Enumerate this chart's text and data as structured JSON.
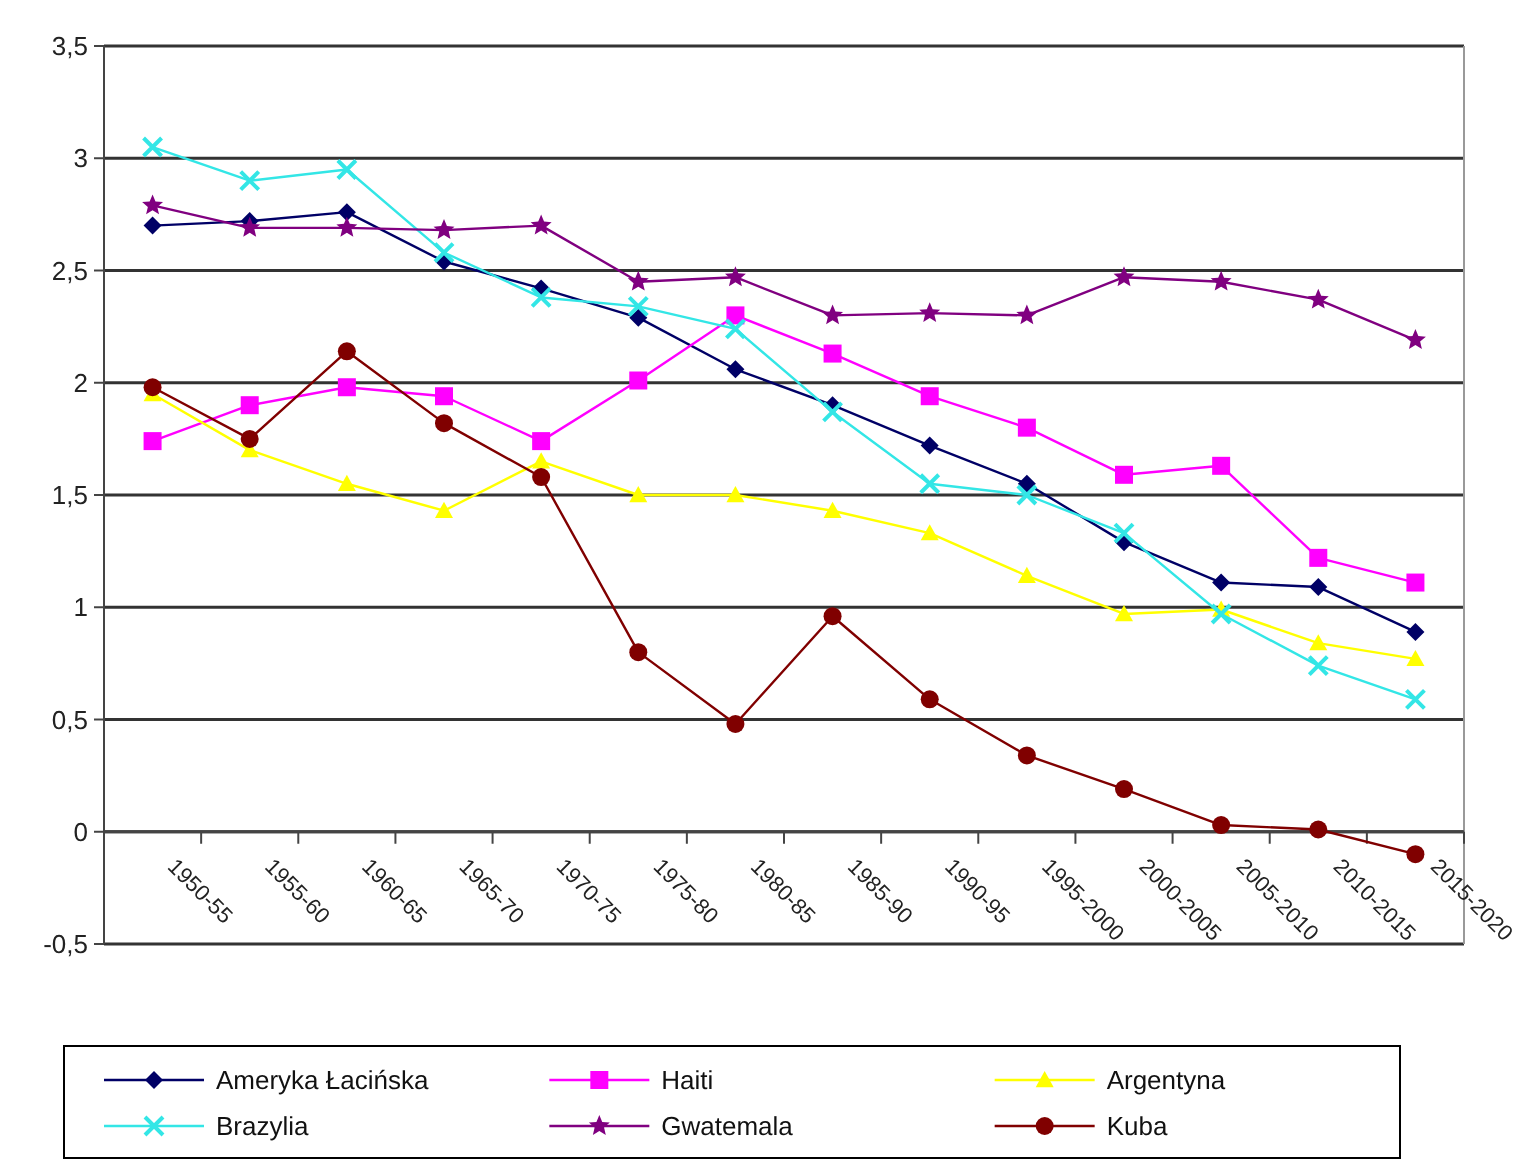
{
  "chart_data": {
    "type": "line",
    "categories": [
      "1950-55",
      "1955-60",
      "1960-65",
      "1965-70",
      "1970-75",
      "1975-80",
      "1980-85",
      "1985-90",
      "1990-95",
      "1995-2000",
      "2000-2005",
      "2005-2010",
      "2010-2015",
      "2015-2020"
    ],
    "ylim": [
      -0.5,
      3.5
    ],
    "yticks": [
      {
        "value": -0.5,
        "label": "-0,5"
      },
      0,
      {
        "value": 0.5,
        "label": "0,5"
      },
      1,
      {
        "value": 1.5,
        "label": "1,5"
      },
      2,
      {
        "value": 2.5,
        "label": "2,5"
      },
      3,
      {
        "value": 3.5,
        "label": "3,5"
      }
    ],
    "grid": "y",
    "legend": "bottom",
    "series": [
      {
        "name": "Ameryka Łacińska",
        "color": "#000066",
        "marker": "diamond",
        "values": [
          2.7,
          2.72,
          2.76,
          2.54,
          2.42,
          2.29,
          2.06,
          1.9,
          1.72,
          1.55,
          1.29,
          1.11,
          1.09,
          0.89
        ]
      },
      {
        "name": "Haiti",
        "color": "#ff00ff",
        "marker": "square",
        "values": [
          1.74,
          1.9,
          1.98,
          1.94,
          1.74,
          2.01,
          2.3,
          2.13,
          1.94,
          1.8,
          1.59,
          1.63,
          1.22,
          1.11
        ]
      },
      {
        "name": "Argentyna",
        "color": "#ffff00",
        "marker": "triangle",
        "values": [
          1.95,
          1.7,
          1.55,
          1.43,
          1.65,
          1.5,
          1.5,
          1.43,
          1.33,
          1.14,
          0.97,
          0.99,
          0.84,
          0.77
        ]
      },
      {
        "name": "Brazylia",
        "color": "#33e6e6",
        "marker": "cross",
        "values": [
          3.05,
          2.9,
          2.95,
          2.58,
          2.38,
          2.34,
          2.24,
          1.87,
          1.55,
          1.5,
          1.33,
          0.97,
          0.74,
          0.59
        ]
      },
      {
        "name": "Gwatemala",
        "color": "#800080",
        "marker": "star",
        "values": [
          2.79,
          2.69,
          2.69,
          2.68,
          2.7,
          2.45,
          2.47,
          2.3,
          2.31,
          2.3,
          2.47,
          2.45,
          2.37,
          2.19
        ]
      },
      {
        "name": "Kuba",
        "color": "#800000",
        "marker": "circle",
        "values": [
          1.98,
          1.75,
          2.14,
          1.82,
          1.58,
          0.8,
          0.48,
          0.96,
          0.59,
          0.34,
          0.19,
          0.03,
          0.01,
          -0.1
        ]
      }
    ]
  }
}
